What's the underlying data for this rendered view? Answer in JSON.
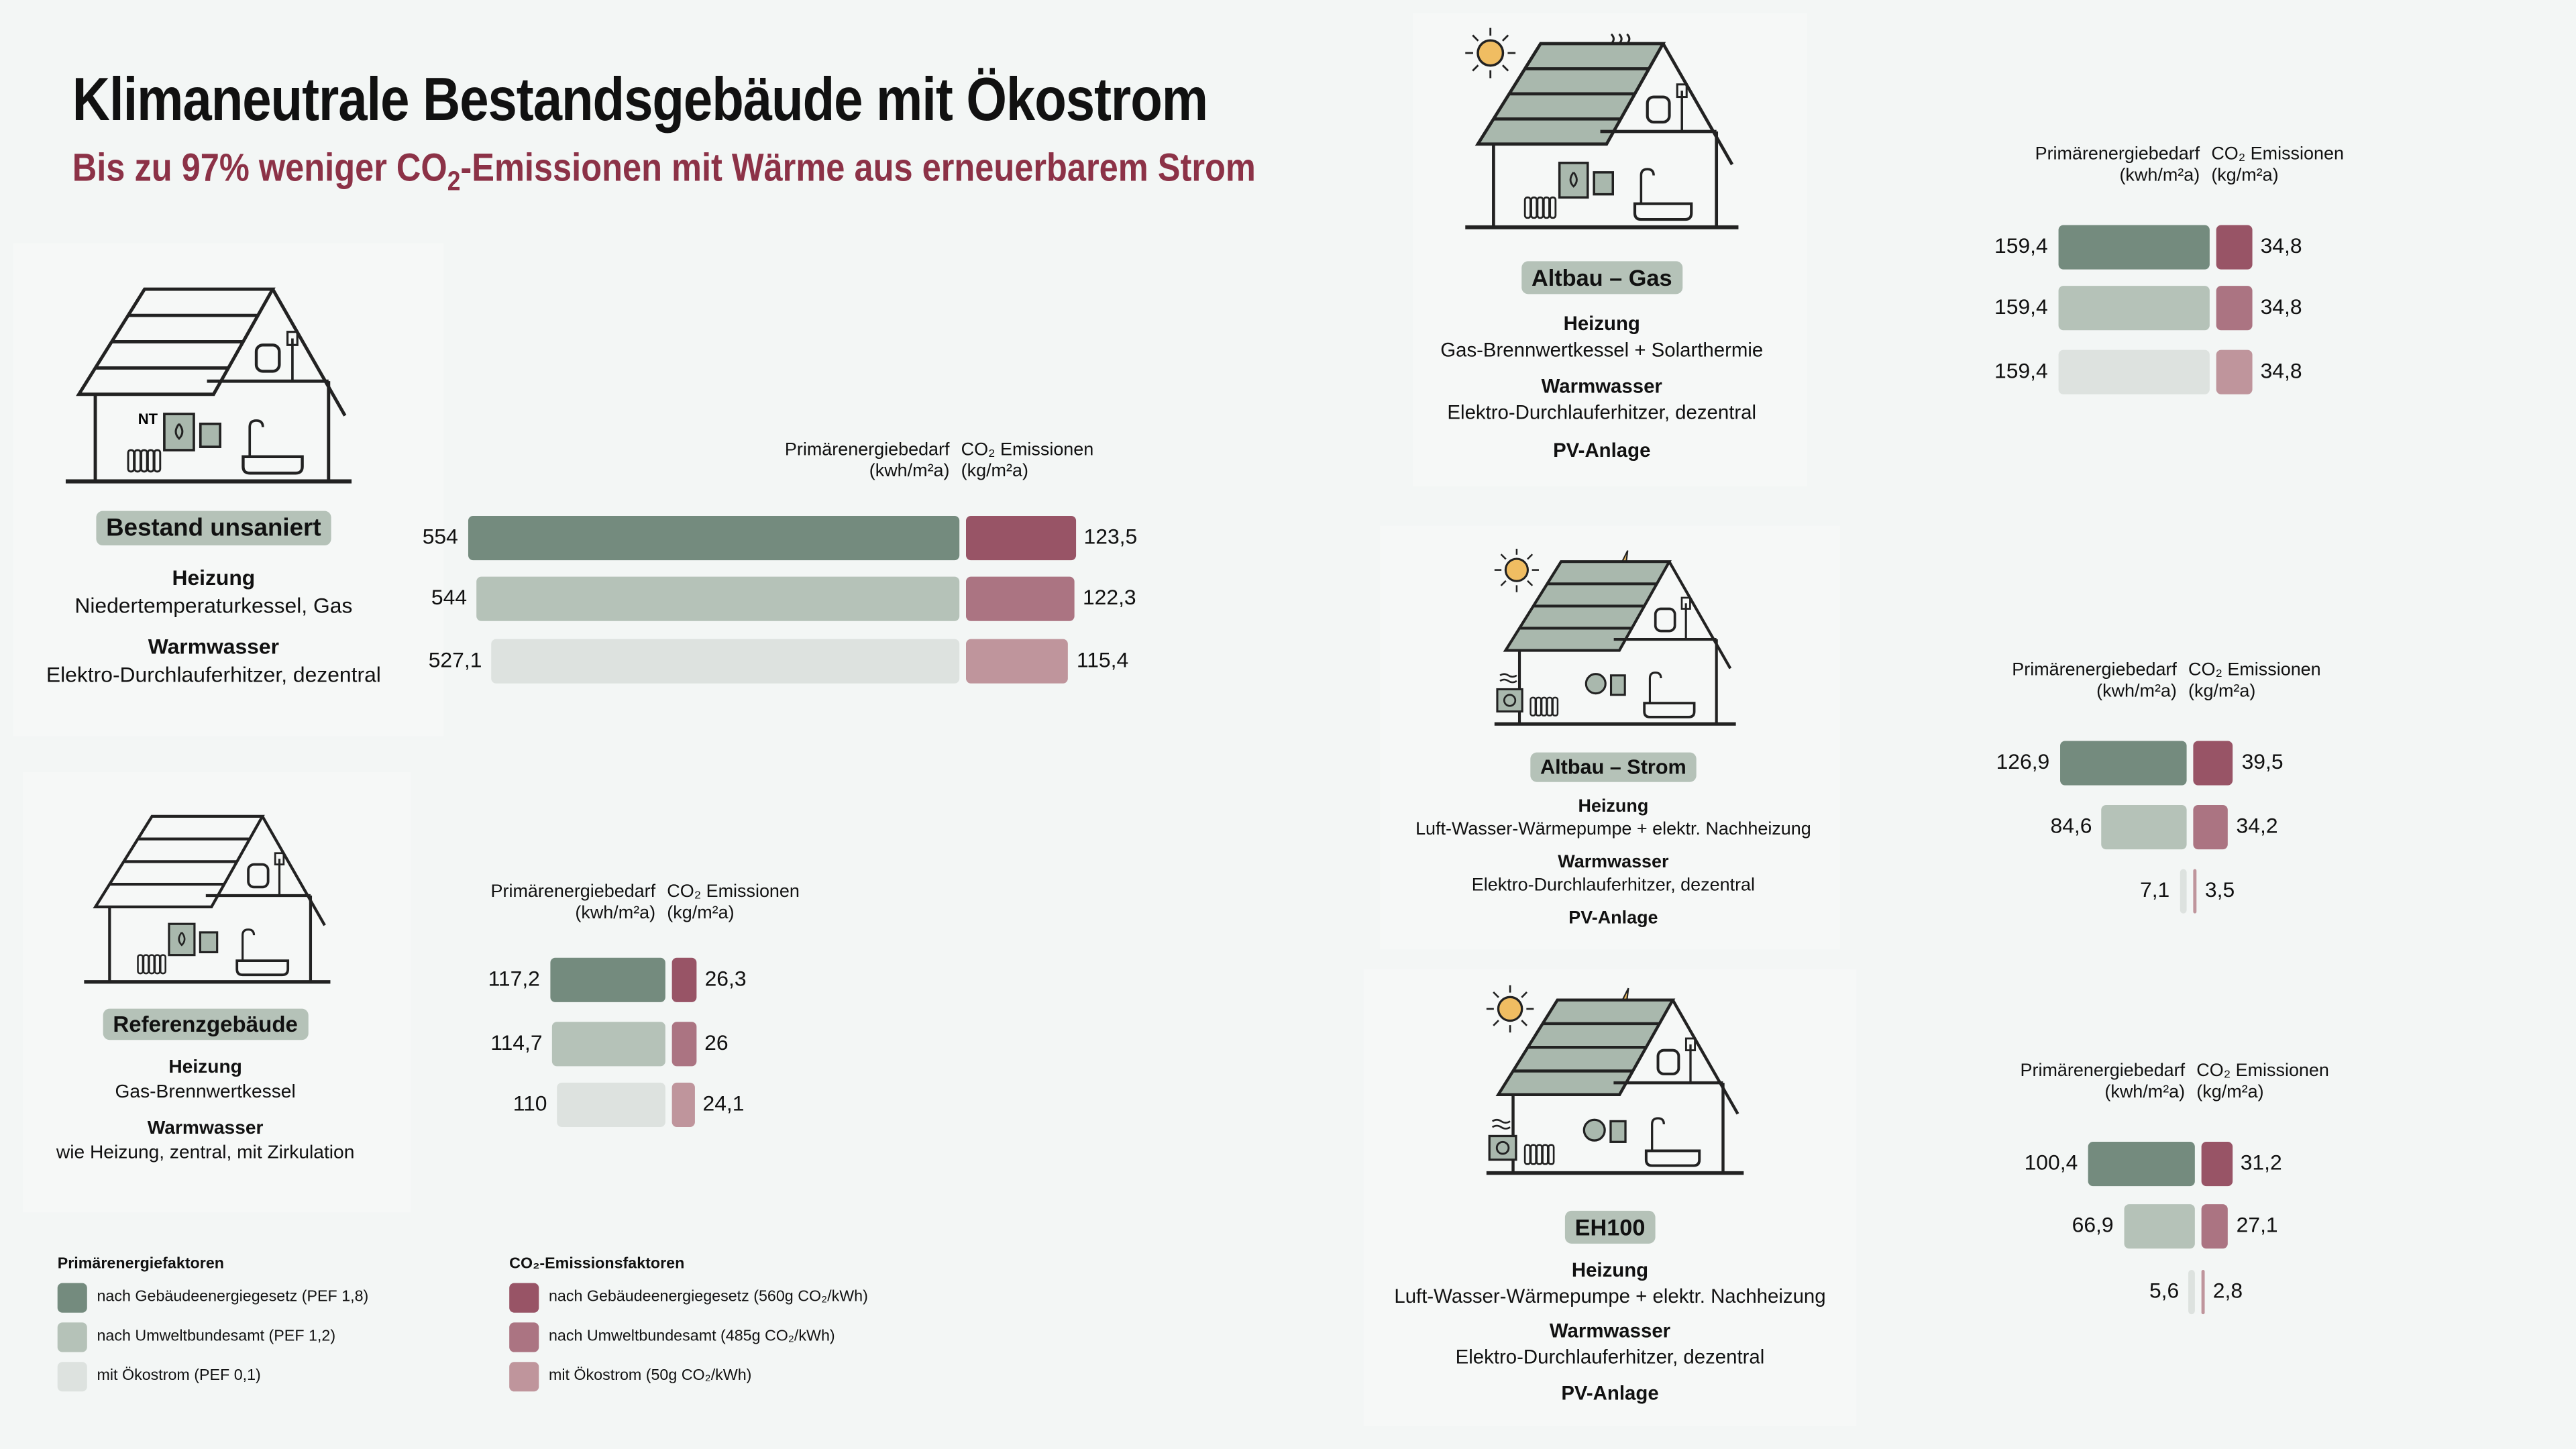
{
  "header": {
    "title": "Klimaneutrale Bestandsgebäude mit Ökostrom",
    "subtitle_pre": "Bis zu 97% weniger CO",
    "subtitle_sub": "2",
    "subtitle_post": "-Emissionen mit Wärme aus erneuerbarem Strom"
  },
  "colors": {
    "energy": [
      "#748b7e",
      "#b5c2b8",
      "#dde2df"
    ],
    "co2": [
      "#985466",
      "#ab7482",
      "#bf959c"
    ],
    "badge": "#b5c2b8",
    "accent": "#8c3247",
    "sun": "#f0bd62"
  },
  "column_headers": {
    "energy_line1": "Primärenergiebedarf",
    "energy_line2": "(kwh/m²a)",
    "co2_line1": "CO₂ Emissionen",
    "co2_line2": "(kg/m²a)"
  },
  "chart_data": [
    {
      "type": "bar",
      "name": "Bestand unsaniert",
      "categories": [
        "nach Gebäudeenergiegesetz",
        "nach Umweltbundesamt",
        "mit Ökostrom"
      ],
      "series": [
        {
          "name": "Primärenergiebedarf (kwh/m²a)",
          "values": [
            554,
            544,
            527.1
          ],
          "labels": [
            "554",
            "544",
            "527,1"
          ]
        },
        {
          "name": "CO₂ Emissionen (kg/m²a)",
          "values": [
            123.5,
            122.3,
            115.4
          ],
          "labels": [
            "123,5",
            "122,3",
            "115,4"
          ]
        }
      ]
    },
    {
      "type": "bar",
      "name": "Referenzgebäude",
      "categories": [
        "nach Gebäudeenergiegesetz",
        "nach Umweltbundesamt",
        "mit Ökostrom"
      ],
      "series": [
        {
          "name": "Primärenergiebedarf (kwh/m²a)",
          "values": [
            117.2,
            114.7,
            110
          ],
          "labels": [
            "117,2",
            "114,7",
            "110"
          ]
        },
        {
          "name": "CO₂ Emissionen (kg/m²a)",
          "values": [
            26.3,
            26,
            24.1
          ],
          "labels": [
            "26,3",
            "26",
            "24,1"
          ]
        }
      ]
    },
    {
      "type": "bar",
      "name": "Altbau – Gas",
      "categories": [
        "nach Gebäudeenergiegesetz",
        "nach Umweltbundesamt",
        "mit Ökostrom"
      ],
      "series": [
        {
          "name": "Primärenergiebedarf (kwh/m²a)",
          "values": [
            159.4,
            159.4,
            159.4
          ],
          "labels": [
            "159,4",
            "159,4",
            "159,4"
          ]
        },
        {
          "name": "CO₂ Emissionen (kg/m²a)",
          "values": [
            34.8,
            34.8,
            34.8
          ],
          "labels": [
            "34,8",
            "34,8",
            "34,8"
          ]
        }
      ]
    },
    {
      "type": "bar",
      "name": "Altbau – Strom",
      "categories": [
        "nach Gebäudeenergiegesetz",
        "nach Umweltbundesamt",
        "mit Ökostrom"
      ],
      "series": [
        {
          "name": "Primärenergiebedarf (kwh/m²a)",
          "values": [
            126.9,
            84.6,
            7.1
          ],
          "labels": [
            "126,9",
            "84,6",
            "7,1"
          ]
        },
        {
          "name": "CO₂ Emissionen (kg/m²a)",
          "values": [
            39.5,
            34.2,
            3.5
          ],
          "labels": [
            "39,5",
            "34,2",
            "3,5"
          ]
        }
      ]
    },
    {
      "type": "bar",
      "name": "EH100",
      "categories": [
        "nach Gebäudeenergiegesetz",
        "nach Umweltbundesamt",
        "mit Ökostrom"
      ],
      "series": [
        {
          "name": "Primärenergiebedarf (kwh/m²a)",
          "values": [
            100.4,
            66.9,
            5.6
          ],
          "labels": [
            "100,4",
            "66,9",
            "5,6"
          ]
        },
        {
          "name": "CO₂ Emissionen (kg/m²a)",
          "values": [
            31.2,
            27.1,
            2.8
          ],
          "labels": [
            "31,2",
            "27,1",
            "2,8"
          ]
        }
      ]
    }
  ],
  "buildings": [
    {
      "label": "Bestand unsaniert",
      "house_icon": "house-gas-nt-icon",
      "heating_title": "Heizung",
      "heating": "Niedertemperaturkessel, Gas",
      "water_title": "Warmwasser",
      "water": "Elektro-Durchlauferhitzer, dezentral",
      "boiler_tag": "NT"
    },
    {
      "label": "Referenzgebäude",
      "house_icon": "house-gas-icon",
      "heating_title": "Heizung",
      "heating": "Gas-Brennwertkessel",
      "water_title": "Warmwasser",
      "water": "wie Heizung, zentral, mit Zirkulation"
    },
    {
      "label": "Altbau – Gas",
      "house_icon": "house-gas-solarthermal-icon",
      "heating_title": "Heizung",
      "heating": "Gas-Brennwertkessel + Solarthermie",
      "water_title": "Warmwasser",
      "water": "Elektro-Durchlauferhitzer, dezentral",
      "extra": "PV-Anlage"
    },
    {
      "label": "Altbau – Strom",
      "house_icon": "house-heatpump-pv-icon",
      "heating_title": "Heizung",
      "heating": "Luft-Wasser-Wärmepumpe + elektr. Nachheizung",
      "water_title": "Warmwasser",
      "water": "Elektro-Durchlauferhitzer, dezentral",
      "extra": "PV-Anlage"
    },
    {
      "label": "EH100",
      "house_icon": "house-heatpump-pv-icon",
      "heating_title": "Heizung",
      "heating": "Luft-Wasser-Wärmepumpe + elektr. Nachheizung",
      "water_title": "Warmwasser",
      "water": "Elektro-Durchlauferhitzer, dezentral",
      "extra": "PV-Anlage"
    }
  ],
  "legend": {
    "energy_title": "Primärenergiefaktoren",
    "energy_items": [
      "nach Gebäudeenergiegesetz (PEF 1,8)",
      "nach Umweltbundesamt (PEF 1,2)",
      "mit Ökostrom (PEF 0,1)"
    ],
    "co2_title": "CO₂-Emissionsfaktoren",
    "co2_items": [
      "nach Gebäudeenergiegesetz (560g CO₂/kWh)",
      "nach Umweltbundesamt (485g CO₂/kWh)",
      "mit Ökostrom (50g CO₂/kWh)"
    ]
  }
}
